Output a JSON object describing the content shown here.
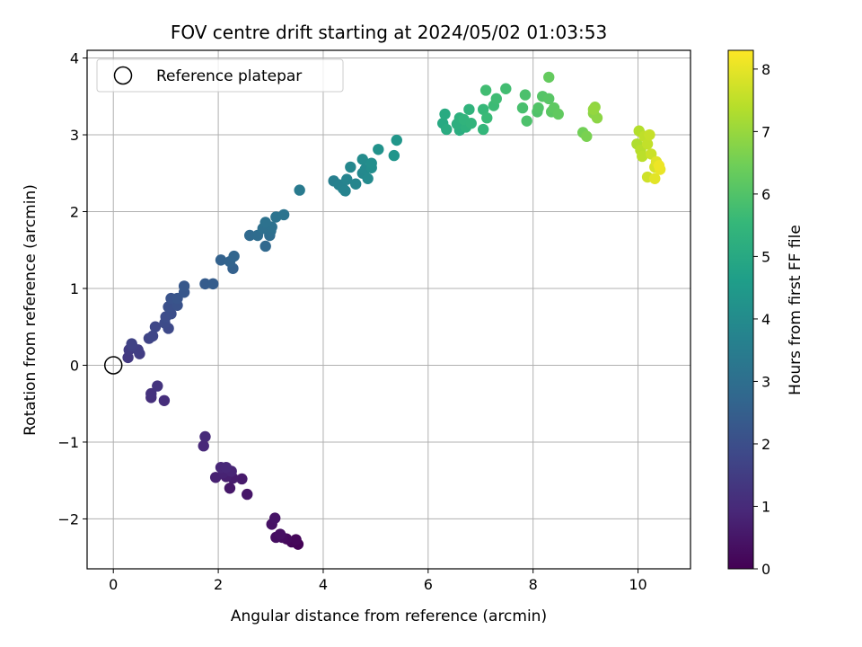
{
  "chart_data": {
    "type": "scatter",
    "title": "FOV centre drift starting at 2024/05/02 01:03:53",
    "xlabel": "Angular distance from reference (arcmin)",
    "ylabel": "Rotation from reference (arcmin)",
    "xlim": [
      -0.5,
      11.0
    ],
    "ylim": [
      -2.65,
      4.1
    ],
    "xticks": [
      0,
      2,
      4,
      6,
      8,
      10
    ],
    "yticks": [
      -2,
      -1,
      0,
      1,
      2,
      3,
      4
    ],
    "grid": true,
    "legend": {
      "position": "top-left",
      "entries": [
        "Reference platepar"
      ]
    },
    "reference_point": {
      "x": 0,
      "y": 0,
      "marker": "hollow-circle"
    },
    "colorbar": {
      "label": "Hours from first FF file",
      "range": [
        0,
        8.3
      ],
      "ticks": [
        0,
        1,
        2,
        3,
        4,
        5,
        6,
        7,
        8
      ],
      "colormap": "viridis",
      "colors": [
        "#440154",
        "#482878",
        "#3e4989",
        "#31688e",
        "#26828e",
        "#1f9e89",
        "#35b779",
        "#6ece58",
        "#b5de2b",
        "#fde725"
      ]
    },
    "points": [
      {
        "x": 3.52,
        "y": -2.33,
        "h": 0.05
      },
      {
        "x": 3.4,
        "y": -2.3,
        "h": 0.1
      },
      {
        "x": 3.48,
        "y": -2.27,
        "h": 0.15
      },
      {
        "x": 3.3,
        "y": -2.26,
        "h": 0.2
      },
      {
        "x": 3.22,
        "y": -2.24,
        "h": 0.25
      },
      {
        "x": 3.1,
        "y": -2.24,
        "h": 0.3
      },
      {
        "x": 3.18,
        "y": -2.2,
        "h": 0.35
      },
      {
        "x": 3.02,
        "y": -2.07,
        "h": 0.4
      },
      {
        "x": 3.08,
        "y": -1.99,
        "h": 0.45
      },
      {
        "x": 2.55,
        "y": -1.68,
        "h": 0.5
      },
      {
        "x": 2.22,
        "y": -1.6,
        "h": 0.55
      },
      {
        "x": 2.45,
        "y": -1.48,
        "h": 0.6
      },
      {
        "x": 2.28,
        "y": -1.47,
        "h": 0.65
      },
      {
        "x": 2.15,
        "y": -1.45,
        "h": 0.7
      },
      {
        "x": 1.95,
        "y": -1.46,
        "h": 0.75
      },
      {
        "x": 2.1,
        "y": -1.4,
        "h": 0.8
      },
      {
        "x": 2.25,
        "y": -1.38,
        "h": 0.85
      },
      {
        "x": 2.05,
        "y": -1.33,
        "h": 0.9
      },
      {
        "x": 2.15,
        "y": -1.33,
        "h": 0.92
      },
      {
        "x": 1.72,
        "y": -1.05,
        "h": 0.95
      },
      {
        "x": 1.75,
        "y": -0.93,
        "h": 1.0
      },
      {
        "x": 0.97,
        "y": -0.46,
        "h": 1.1
      },
      {
        "x": 0.72,
        "y": -0.42,
        "h": 1.15
      },
      {
        "x": 0.72,
        "y": -0.37,
        "h": 1.2
      },
      {
        "x": 0.84,
        "y": -0.27,
        "h": 1.25
      },
      {
        "x": 0.28,
        "y": 0.1,
        "h": 1.4
      },
      {
        "x": 0.3,
        "y": 0.2,
        "h": 1.45
      },
      {
        "x": 0.5,
        "y": 0.15,
        "h": 1.5
      },
      {
        "x": 0.47,
        "y": 0.2,
        "h": 1.55
      },
      {
        "x": 0.36,
        "y": 0.25,
        "h": 1.6
      },
      {
        "x": 0.35,
        "y": 0.28,
        "h": 1.65
      },
      {
        "x": 0.68,
        "y": 0.35,
        "h": 1.7
      },
      {
        "x": 0.75,
        "y": 0.38,
        "h": 1.75
      },
      {
        "x": 0.8,
        "y": 0.5,
        "h": 1.8
      },
      {
        "x": 1.05,
        "y": 0.48,
        "h": 1.85
      },
      {
        "x": 0.98,
        "y": 0.55,
        "h": 1.9
      },
      {
        "x": 1.0,
        "y": 0.63,
        "h": 1.95
      },
      {
        "x": 1.1,
        "y": 0.67,
        "h": 2.0
      },
      {
        "x": 1.05,
        "y": 0.76,
        "h": 2.05
      },
      {
        "x": 1.22,
        "y": 0.78,
        "h": 2.1
      },
      {
        "x": 1.1,
        "y": 0.87,
        "h": 2.15
      },
      {
        "x": 1.22,
        "y": 0.87,
        "h": 2.2
      },
      {
        "x": 1.35,
        "y": 0.95,
        "h": 2.25
      },
      {
        "x": 1.35,
        "y": 1.03,
        "h": 2.3
      },
      {
        "x": 1.75,
        "y": 1.06,
        "h": 2.4
      },
      {
        "x": 1.9,
        "y": 1.06,
        "h": 2.45
      },
      {
        "x": 2.28,
        "y": 1.26,
        "h": 2.55
      },
      {
        "x": 2.05,
        "y": 1.37,
        "h": 2.6
      },
      {
        "x": 2.22,
        "y": 1.35,
        "h": 2.65
      },
      {
        "x": 2.3,
        "y": 1.42,
        "h": 2.7
      },
      {
        "x": 2.9,
        "y": 1.55,
        "h": 2.8
      },
      {
        "x": 2.6,
        "y": 1.69,
        "h": 2.85
      },
      {
        "x": 2.75,
        "y": 1.69,
        "h": 2.9
      },
      {
        "x": 2.98,
        "y": 1.69,
        "h": 2.95
      },
      {
        "x": 3.0,
        "y": 1.75,
        "h": 3.0
      },
      {
        "x": 2.85,
        "y": 1.78,
        "h": 3.05
      },
      {
        "x": 3.02,
        "y": 1.8,
        "h": 3.1
      },
      {
        "x": 2.9,
        "y": 1.86,
        "h": 3.12
      },
      {
        "x": 3.1,
        "y": 1.93,
        "h": 3.15
      },
      {
        "x": 3.25,
        "y": 1.96,
        "h": 3.2
      },
      {
        "x": 3.55,
        "y": 2.28,
        "h": 3.4
      },
      {
        "x": 4.2,
        "y": 2.4,
        "h": 3.6
      },
      {
        "x": 4.3,
        "y": 2.35,
        "h": 3.65
      },
      {
        "x": 4.38,
        "y": 2.3,
        "h": 3.7
      },
      {
        "x": 4.42,
        "y": 2.27,
        "h": 3.72
      },
      {
        "x": 4.45,
        "y": 2.42,
        "h": 3.75
      },
      {
        "x": 4.62,
        "y": 2.36,
        "h": 3.8
      },
      {
        "x": 4.52,
        "y": 2.58,
        "h": 3.85
      },
      {
        "x": 4.75,
        "y": 2.5,
        "h": 3.9
      },
      {
        "x": 4.8,
        "y": 2.55,
        "h": 3.92
      },
      {
        "x": 4.85,
        "y": 2.43,
        "h": 3.95
      },
      {
        "x": 4.75,
        "y": 2.68,
        "h": 4.0
      },
      {
        "x": 4.92,
        "y": 2.57,
        "h": 4.05
      },
      {
        "x": 4.92,
        "y": 2.63,
        "h": 4.1
      },
      {
        "x": 5.05,
        "y": 2.81,
        "h": 4.2
      },
      {
        "x": 5.35,
        "y": 2.73,
        "h": 4.3
      },
      {
        "x": 5.4,
        "y": 2.93,
        "h": 4.35
      },
      {
        "x": 6.28,
        "y": 3.15,
        "h": 5.0
      },
      {
        "x": 6.32,
        "y": 3.27,
        "h": 5.05
      },
      {
        "x": 6.35,
        "y": 3.07,
        "h": 5.1
      },
      {
        "x": 6.6,
        "y": 3.06,
        "h": 5.15
      },
      {
        "x": 6.55,
        "y": 3.14,
        "h": 5.2
      },
      {
        "x": 6.6,
        "y": 3.22,
        "h": 5.25
      },
      {
        "x": 6.72,
        "y": 3.1,
        "h": 5.3
      },
      {
        "x": 6.78,
        "y": 3.33,
        "h": 5.35
      },
      {
        "x": 6.68,
        "y": 3.2,
        "h": 5.38
      },
      {
        "x": 6.82,
        "y": 3.15,
        "h": 5.4
      },
      {
        "x": 7.05,
        "y": 3.07,
        "h": 5.5
      },
      {
        "x": 7.05,
        "y": 3.33,
        "h": 5.55
      },
      {
        "x": 7.12,
        "y": 3.22,
        "h": 5.6
      },
      {
        "x": 7.25,
        "y": 3.38,
        "h": 5.65
      },
      {
        "x": 7.3,
        "y": 3.47,
        "h": 5.7
      },
      {
        "x": 7.1,
        "y": 3.58,
        "h": 5.72
      },
      {
        "x": 7.48,
        "y": 3.6,
        "h": 5.75
      },
      {
        "x": 7.8,
        "y": 3.35,
        "h": 5.85
      },
      {
        "x": 7.85,
        "y": 3.52,
        "h": 5.9
      },
      {
        "x": 7.88,
        "y": 3.18,
        "h": 5.92
      },
      {
        "x": 8.08,
        "y": 3.3,
        "h": 5.95
      },
      {
        "x": 8.1,
        "y": 3.35,
        "h": 6.0
      },
      {
        "x": 8.18,
        "y": 3.5,
        "h": 6.05
      },
      {
        "x": 8.3,
        "y": 3.47,
        "h": 6.1
      },
      {
        "x": 8.35,
        "y": 3.3,
        "h": 6.15
      },
      {
        "x": 8.4,
        "y": 3.35,
        "h": 6.2
      },
      {
        "x": 8.48,
        "y": 3.27,
        "h": 6.25
      },
      {
        "x": 8.3,
        "y": 3.75,
        "h": 6.3
      },
      {
        "x": 8.95,
        "y": 3.03,
        "h": 6.5
      },
      {
        "x": 9.02,
        "y": 2.98,
        "h": 6.6
      },
      {
        "x": 9.15,
        "y": 3.28,
        "h": 6.8
      },
      {
        "x": 9.22,
        "y": 3.22,
        "h": 6.85
      },
      {
        "x": 9.18,
        "y": 3.36,
        "h": 6.9
      },
      {
        "x": 9.15,
        "y": 3.33,
        "h": 6.95
      },
      {
        "x": 9.98,
        "y": 2.88,
        "h": 7.3
      },
      {
        "x": 10.02,
        "y": 3.05,
        "h": 7.35
      },
      {
        "x": 10.05,
        "y": 2.8,
        "h": 7.4
      },
      {
        "x": 10.08,
        "y": 2.72,
        "h": 7.45
      },
      {
        "x": 10.12,
        "y": 2.98,
        "h": 7.5
      },
      {
        "x": 10.18,
        "y": 2.88,
        "h": 7.55
      },
      {
        "x": 10.22,
        "y": 3.0,
        "h": 7.6
      },
      {
        "x": 10.25,
        "y": 2.75,
        "h": 7.65
      },
      {
        "x": 10.18,
        "y": 2.45,
        "h": 7.7
      },
      {
        "x": 10.32,
        "y": 2.58,
        "h": 7.8
      },
      {
        "x": 10.35,
        "y": 2.65,
        "h": 7.9
      },
      {
        "x": 10.32,
        "y": 2.43,
        "h": 7.95
      },
      {
        "x": 10.42,
        "y": 2.55,
        "h": 8.05
      },
      {
        "x": 10.4,
        "y": 2.6,
        "h": 8.1
      }
    ]
  }
}
